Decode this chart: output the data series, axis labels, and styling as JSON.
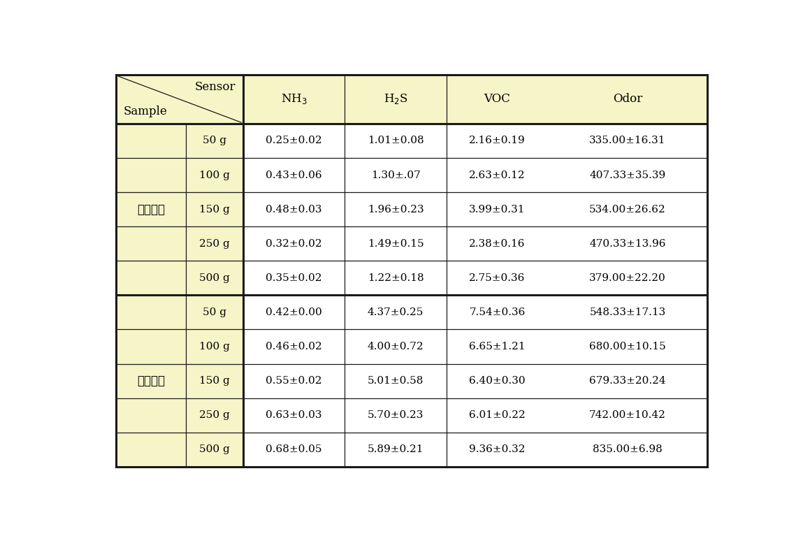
{
  "yellow_bg": "#f5f5c8",
  "white_bg": "#ffffff",
  "border_color": "#1a1a1a",
  "groups": [
    {
      "name": "배추김치",
      "rows": [
        {
          "weight": "50 g",
          "nh3": "0.25±0.02",
          "h2s": "1.01±0.08",
          "voc": "2.16±0.19",
          "odor": "335.00±16.31"
        },
        {
          "weight": "100 g",
          "nh3": "0.43±0.06",
          "h2s": "1.30±.07",
          "voc": "2.63±0.12",
          "odor": "407.33±35.39"
        },
        {
          "weight": "150 g",
          "nh3": "0.48±0.03",
          "h2s": "1.96±0.23",
          "voc": "3.99±0.31",
          "odor": "534.00±26.62"
        },
        {
          "weight": "250 g",
          "nh3": "0.32±0.02",
          "h2s": "1.49±0.15",
          "voc": "2.38±0.16",
          "odor": "470.33±13.96"
        },
        {
          "weight": "500 g",
          "nh3": "0.35±0.02",
          "h2s": "1.22±0.18",
          "voc": "2.75±0.36",
          "odor": "379.00±22.20"
        }
      ]
    },
    {
      "name": "총각김치",
      "rows": [
        {
          "weight": "50 g",
          "nh3": "0.42±0.00",
          "h2s": "4.37±0.25",
          "voc": "7.54±0.36",
          "odor": "548.33±17.13"
        },
        {
          "weight": "100 g",
          "nh3": "0.46±0.02",
          "h2s": "4.00±0.72",
          "voc": "6.65±1.21",
          "odor": "680.00±10.15"
        },
        {
          "weight": "150 g",
          "nh3": "0.55±0.02",
          "h2s": "5.01±0.58",
          "voc": "6.40±0.30",
          "odor": "679.33±20.24"
        },
        {
          "weight": "250 g",
          "nh3": "0.63±0.03",
          "h2s": "5.70±0.23",
          "voc": "6.01±0.22",
          "odor": "742.00±10.42"
        },
        {
          "weight": "500 g",
          "nh3": "0.68±0.05",
          "h2s": "5.89±0.21",
          "voc": "9.36±0.32",
          "odor": "835.00±6.98"
        }
      ]
    }
  ],
  "font_size": 11,
  "header_font_size": 12,
  "korean_font_size": 12
}
